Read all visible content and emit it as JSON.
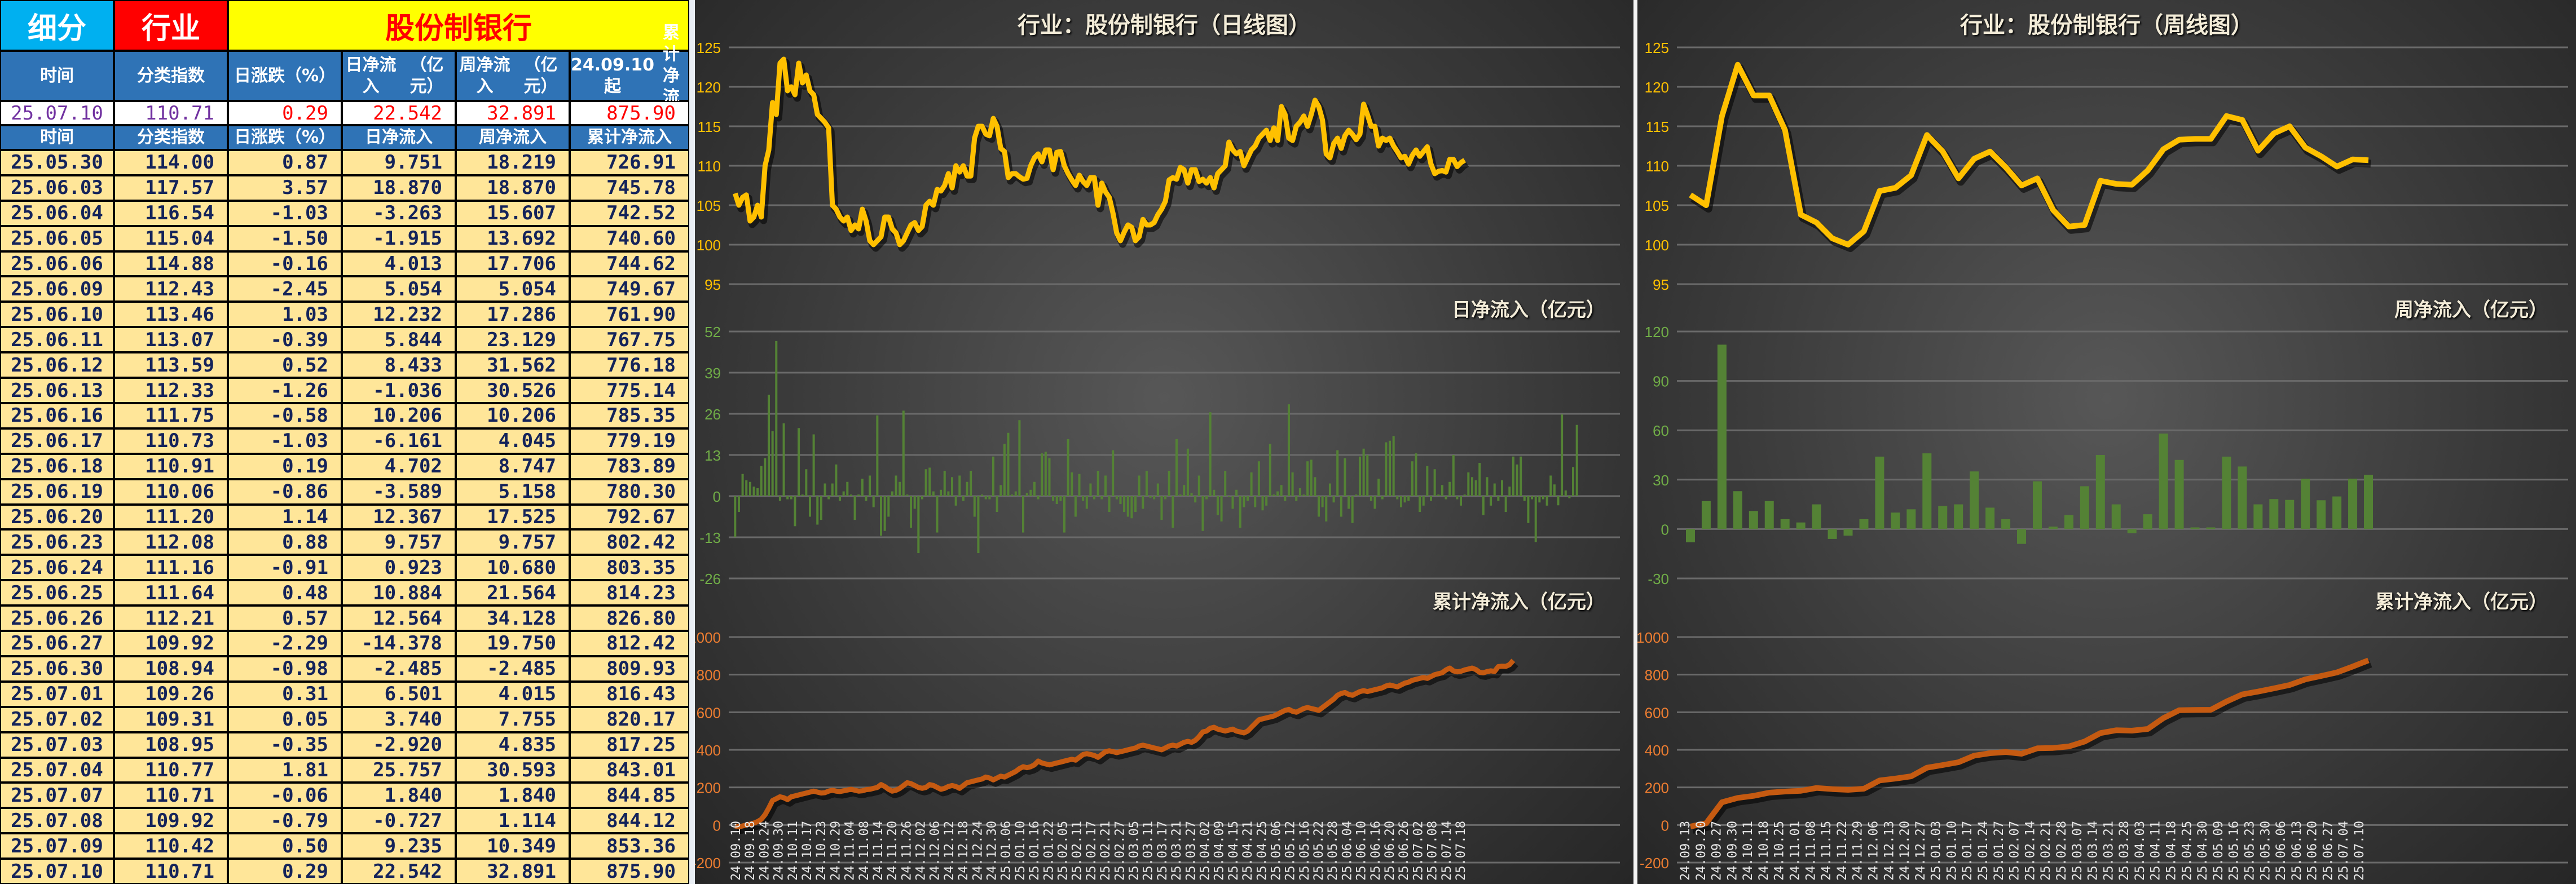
{
  "table": {
    "banner": {
      "category_label": "细分",
      "type_label": "行业",
      "name": "股份制银行"
    },
    "header": [
      "时间",
      "分类指数",
      "日涨跌（%）",
      "日净流入\n（亿元）",
      "周净流入\n（亿元）",
      "24.09.10起\n累计净流入"
    ],
    "summary": [
      "25.07.10",
      "110.71",
      "0.29",
      "22.542",
      "32.891",
      "875.90"
    ],
    "subheader": [
      "时间",
      "分类指数",
      "日涨跌（%）",
      "日净流入",
      "周净流入",
      "累计净流入"
    ],
    "rows": [
      [
        "25.05.30",
        "114.00",
        "0.87",
        "9.751",
        "18.219",
        "726.91"
      ],
      [
        "25.06.03",
        "117.57",
        "3.57",
        "18.870",
        "18.870",
        "745.78"
      ],
      [
        "25.06.04",
        "116.54",
        "-1.03",
        "-3.263",
        "15.607",
        "742.52"
      ],
      [
        "25.06.05",
        "115.04",
        "-1.50",
        "-1.915",
        "13.692",
        "740.60"
      ],
      [
        "25.06.06",
        "114.88",
        "-0.16",
        "4.013",
        "17.706",
        "744.62"
      ],
      [
        "25.06.09",
        "112.43",
        "-2.45",
        "5.054",
        "5.054",
        "749.67"
      ],
      [
        "25.06.10",
        "113.46",
        "1.03",
        "12.232",
        "17.286",
        "761.90"
      ],
      [
        "25.06.11",
        "113.07",
        "-0.39",
        "5.844",
        "23.129",
        "767.75"
      ],
      [
        "25.06.12",
        "113.59",
        "0.52",
        "8.433",
        "31.562",
        "776.18"
      ],
      [
        "25.06.13",
        "112.33",
        "-1.26",
        "-1.036",
        "30.526",
        "775.14"
      ],
      [
        "25.06.16",
        "111.75",
        "-0.58",
        "10.206",
        "10.206",
        "785.35"
      ],
      [
        "25.06.17",
        "110.73",
        "-1.03",
        "-6.161",
        "4.045",
        "779.19"
      ],
      [
        "25.06.18",
        "110.91",
        "0.19",
        "4.702",
        "8.747",
        "783.89"
      ],
      [
        "25.06.19",
        "110.06",
        "-0.86",
        "-3.589",
        "5.158",
        "780.30"
      ],
      [
        "25.06.20",
        "111.20",
        "1.14",
        "12.367",
        "17.525",
        "792.67"
      ],
      [
        "25.06.23",
        "112.08",
        "0.88",
        "9.757",
        "9.757",
        "802.42"
      ],
      [
        "25.06.24",
        "111.16",
        "-0.91",
        "0.923",
        "10.680",
        "803.35"
      ],
      [
        "25.06.25",
        "111.64",
        "0.48",
        "10.884",
        "21.564",
        "814.23"
      ],
      [
        "25.06.26",
        "112.21",
        "0.57",
        "12.564",
        "34.128",
        "826.80"
      ],
      [
        "25.06.27",
        "109.92",
        "-2.29",
        "-14.378",
        "19.750",
        "812.42"
      ],
      [
        "25.06.30",
        "108.94",
        "-0.98",
        "-2.485",
        "-2.485",
        "809.93"
      ],
      [
        "25.07.01",
        "109.26",
        "0.31",
        "6.501",
        "4.015",
        "816.43"
      ],
      [
        "25.07.02",
        "109.31",
        "0.05",
        "3.740",
        "7.755",
        "820.17"
      ],
      [
        "25.07.03",
        "108.95",
        "-0.35",
        "-2.920",
        "4.835",
        "817.25"
      ],
      [
        "25.07.04",
        "110.77",
        "1.81",
        "25.757",
        "30.593",
        "843.01"
      ],
      [
        "25.07.07",
        "110.71",
        "-0.06",
        "1.840",
        "1.840",
        "844.85"
      ],
      [
        "25.07.08",
        "109.92",
        "-0.79",
        "-0.727",
        "1.114",
        "844.12"
      ],
      [
        "25.07.09",
        "110.42",
        "0.50",
        "9.235",
        "10.349",
        "853.36"
      ],
      [
        "25.07.10",
        "110.71",
        "0.29",
        "22.542",
        "32.891",
        "875.90"
      ]
    ]
  },
  "colors": {
    "banner_category_bg": "#00b0f0",
    "banner_type_bg": "#ff0000",
    "banner_name_bg": "#ffff00",
    "banner_name_text": "#ff0000",
    "header_bg": "#2f73b6",
    "row_bg": "#ffe699",
    "row_text": "#14235a",
    "summary_date_text": "#7030a0",
    "summary_value_text": "#ff0000",
    "price_line": "#ffc000",
    "flow_bar": "#548235",
    "cum_line": "#c55a11",
    "price_axis": "#ffc000",
    "flow_axis": "#70ad47",
    "cum_axis": "#ed7d31"
  },
  "chart_data": [
    {
      "id": "daily",
      "type": "line+bar+line",
      "title": "行业：股份制银行（日线图）",
      "panels": [
        {
          "name": "price",
          "type": "line",
          "label": "",
          "ylim": [
            95,
            125
          ],
          "yticks": [
            95,
            100,
            105,
            110,
            115,
            120,
            125
          ]
        },
        {
          "name": "flow",
          "type": "bar",
          "label": "日净流入（亿元）",
          "ylim": [
            -26,
            52
          ],
          "yticks": [
            -26,
            -13,
            0,
            13,
            26,
            39,
            52
          ]
        },
        {
          "name": "cum",
          "type": "line",
          "label": "累计净流入（亿元）",
          "ylim": [
            -200,
            1000
          ],
          "yticks": [
            -200,
            0,
            200,
            400,
            600,
            800,
            1000
          ]
        }
      ],
      "x_tick_labels": [
        "24.09.10",
        "24.09.18",
        "24.09.24",
        "24.09.30",
        "24.10.11",
        "24.10.17",
        "24.10.23",
        "24.10.29",
        "24.11.04",
        "24.11.08",
        "24.11.14",
        "24.11.20",
        "24.11.26",
        "24.12.02",
        "24.12.06",
        "24.12.12",
        "24.12.18",
        "24.12.24",
        "24.12.30",
        "25.01.06",
        "25.01.10",
        "25.01.16",
        "25.01.22",
        "25.02.05",
        "25.02.11",
        "25.02.17",
        "25.02.21",
        "25.02.27",
        "25.03.05",
        "25.03.11",
        "25.03.17",
        "25.03.21",
        "25.03.27",
        "25.04.02",
        "25.04.09",
        "25.04.15",
        "25.04.21",
        "25.04.25",
        "25.05.06",
        "25.05.12",
        "25.05.16",
        "25.05.22",
        "25.05.28",
        "25.06.04",
        "25.06.10",
        "25.06.16",
        "25.06.20",
        "25.06.26",
        "25.07.02",
        "25.07.08",
        "25.07.14",
        "25.07.18"
      ],
      "price": [
        106.5,
        105,
        106,
        106.3,
        103,
        103.5,
        105,
        103.5,
        110,
        112,
        118,
        116.5,
        123,
        123.5,
        119.5,
        120,
        119,
        123,
        120.5,
        121.5,
        119.5,
        119,
        116.5,
        116,
        115.5,
        114.8,
        105,
        104.5,
        103.5,
        103,
        103.5,
        101.8,
        102.5,
        102,
        104.5,
        103,
        100.5,
        100,
        100.5,
        101,
        103.5,
        103.5,
        102,
        101.5,
        100,
        100.5,
        101.5,
        102.5,
        102.8,
        101.8,
        102.3,
        105,
        105.5,
        105,
        107,
        106.8,
        107.5,
        109,
        107.2,
        110,
        109.2,
        110,
        108.7,
        108.7,
        113.5,
        115,
        115,
        114,
        113.8,
        116,
        115,
        112.2,
        111.8,
        108.5,
        109,
        109,
        108.6,
        108.3,
        108.4,
        110,
        111,
        111.5,
        110.5,
        112,
        112,
        109.5,
        111.7,
        111.8,
        110,
        109,
        108.2,
        107.5,
        108.8,
        108,
        107.5,
        108.5,
        108.5,
        105,
        107.8,
        106.7,
        106,
        104,
        101.5,
        100.5,
        101.6,
        102.5,
        102.2,
        100.5,
        101,
        103.2,
        102.5,
        102.5,
        102.8,
        103.8,
        104.5,
        105.5,
        108.2,
        108.5,
        108.3,
        109.8,
        109.5,
        107.8,
        109.5,
        109.5,
        108,
        108.3,
        107.8,
        108.5,
        107.2,
        109,
        109.5,
        110,
        113,
        112,
        111.5,
        111.8,
        110,
        111,
        112,
        112.5,
        113.5,
        114,
        114.5,
        113.2,
        114.8,
        113.2,
        117.5,
        116.5,
        113.5,
        113.2,
        115,
        115.5,
        116.3,
        115,
        116.5,
        118.3,
        117.5,
        115.8,
        111.5,
        111,
        112.8,
        113.5,
        112.2,
        113.8,
        114.5,
        114,
        113.3,
        114,
        117.8,
        116.5,
        115,
        115,
        112.5,
        113.5,
        113.2,
        113.5,
        112.5,
        111.8,
        111,
        111.2,
        110.2,
        111.3,
        112,
        111.2,
        111.8,
        112.4,
        110.2,
        109,
        109.3,
        109.4,
        109.2,
        110.8,
        110.8,
        109.9,
        110.4,
        110.7
      ],
      "flow": [
        -13,
        -5,
        7,
        5,
        4.5,
        3,
        2.5,
        9.5,
        12,
        32,
        20.5,
        49,
        -1.5,
        23,
        -1,
        -1,
        -9.5,
        21.5,
        0.5,
        8.5,
        -6.5,
        19.5,
        -9,
        -7.5,
        4,
        -1,
        4,
        10,
        -1.5,
        1.5,
        4.5,
        0.5,
        -7.5,
        0.5,
        5.5,
        -1.5,
        6.5,
        -3.5,
        25.5,
        -12.5,
        -11,
        -6.5,
        1.5,
        6.5,
        4.5,
        27,
        0.5,
        -10,
        -4,
        -18,
        -1,
        8.5,
        9,
        1.5,
        -11.5,
        2,
        8,
        1.5,
        6,
        -3,
        6.5,
        -1.5,
        4.5,
        8,
        -6.5,
        -18,
        0.5,
        -1,
        -1,
        12.5,
        -5,
        3.5,
        16.5,
        20,
        0.5,
        1.5,
        24,
        -11.5,
        1,
        2,
        4.5,
        -1,
        13.5,
        14,
        12,
        -1.5,
        -2.5,
        -1.5,
        -11.5,
        18,
        7.5,
        -6.5,
        7,
        -1.5,
        -4,
        4,
        -1,
        8,
        -1,
        6.5,
        -5,
        14.5,
        -1,
        -2.5,
        -5,
        -6.5,
        -7,
        -5,
        6.5,
        -4,
        8,
        -0.5,
        -1,
        4,
        -7.5,
        -1,
        8,
        -10,
        18,
        0.5,
        3.5,
        15,
        1,
        -2,
        6.5,
        -11,
        -1,
        26.5,
        2,
        -6,
        -8,
        8,
        0,
        -4,
        2,
        -10,
        -3.5,
        -1.5,
        7.5,
        -3.5,
        11,
        -4.5,
        -3,
        16.5,
        0.5,
        1.5,
        3.5,
        -1.5,
        29,
        7.5,
        -1.5,
        2.5,
        0.5,
        11,
        11.5,
        6,
        -6.5,
        -3.5,
        -8,
        4,
        -2,
        14.5,
        -6.5,
        12,
        -4,
        -8.5,
        0.5,
        12.5,
        15,
        13,
        -1.5,
        -4,
        5.5,
        -1,
        17,
        17.5,
        19,
        -1,
        -3.5,
        -2,
        -1.5,
        11,
        13.5,
        -5,
        -3,
        9.5,
        -1.5,
        8.5,
        0.5,
        3.5,
        -1,
        4.5,
        13,
        -1,
        -3,
        0.5,
        7.5,
        6,
        5,
        10.5,
        -6,
        6,
        -3,
        4,
        -1.5,
        5,
        -5,
        3,
        12.5,
        10,
        12.5,
        -1.5,
        -8.5,
        -1,
        -14.5,
        -2,
        -1,
        -3,
        6.5,
        3.7,
        -2.9,
        25.8,
        1.8,
        -0.7,
        9.2,
        22.5
      ],
      "cum": [
        -5,
        -10,
        -5,
        0,
        5,
        10,
        18,
        30,
        55,
        90,
        130,
        140,
        150,
        145,
        135,
        150,
        155,
        160,
        165,
        170,
        175,
        180,
        175,
        170,
        172,
        180,
        185,
        180,
        178,
        182,
        186,
        190,
        185,
        180,
        182,
        188,
        190,
        195,
        200,
        215,
        205,
        190,
        180,
        185,
        195,
        210,
        225,
        220,
        210,
        200,
        195,
        200,
        215,
        210,
        200,
        190,
        195,
        205,
        210,
        205,
        195,
        210,
        225,
        230,
        235,
        240,
        245,
        255,
        250,
        240,
        250,
        260,
        255,
        265,
        275,
        285,
        300,
        310,
        305,
        310,
        320,
        340,
        330,
        325,
        320,
        325,
        330,
        335,
        340,
        345,
        350,
        345,
        360,
        375,
        380,
        375,
        370,
        360,
        375,
        390,
        395,
        390,
        385,
        390,
        395,
        400,
        405,
        410,
        420,
        425,
        420,
        415,
        410,
        405,
        400,
        410,
        420,
        425,
        420,
        430,
        440,
        445,
        440,
        450,
        470,
        495,
        500,
        515,
        520,
        510,
        505,
        500,
        505,
        510,
        500,
        495,
        490,
        500,
        520,
        540,
        560,
        565,
        570,
        575,
        580,
        590,
        600,
        610,
        615,
        605,
        600,
        610,
        620,
        625,
        620,
        615,
        610,
        625,
        640,
        655,
        670,
        690,
        700,
        705,
        695,
        690,
        700,
        710,
        715,
        710,
        715,
        720,
        725,
        730,
        740,
        745,
        740,
        735,
        745,
        755,
        760,
        770,
        775,
        780,
        785,
        780,
        790,
        800,
        805,
        810,
        825,
        835,
        820,
        815,
        818,
        825,
        830,
        835,
        826.8,
        812.4,
        809.9,
        816.4,
        820.2,
        817.3,
        843.0,
        844.9,
        844.1,
        853.4,
        875.9
      ]
    },
    {
      "id": "weekly",
      "type": "line+bar+line",
      "title": "行业：股份制银行（周线图）",
      "panels": [
        {
          "name": "price",
          "type": "line",
          "label": "",
          "ylim": [
            95,
            125
          ],
          "yticks": [
            95,
            100,
            105,
            110,
            115,
            120,
            125
          ]
        },
        {
          "name": "flow",
          "type": "bar",
          "label": "周净流入（亿元）",
          "ylim": [
            -30,
            120
          ],
          "yticks": [
            -30,
            0,
            30,
            60,
            90,
            120
          ]
        },
        {
          "name": "cum",
          "type": "line",
          "label": "累计净流入（亿元）",
          "ylim": [
            -200,
            1000
          ],
          "yticks": [
            -200,
            0,
            200,
            400,
            600,
            800,
            1000
          ]
        }
      ],
      "x_tick_labels": [
        "24.09.13",
        "24.09.20",
        "24.09.27",
        "24.09.30",
        "24.10.11",
        "24.10.18",
        "24.10.25",
        "24.11.01",
        "24.11.08",
        "24.11.15",
        "24.11.22",
        "24.11.29",
        "24.12.06",
        "24.12.13",
        "24.12.20",
        "24.12.27",
        "25.01.03",
        "25.01.10",
        "25.01.17",
        "25.01.24",
        "25.01.27",
        "25.02.07",
        "25.02.14",
        "25.02.21",
        "25.02.28",
        "25.03.07",
        "25.03.14",
        "25.03.21",
        "25.03.28",
        "25.04.03",
        "25.04.11",
        "25.04.18",
        "25.04.25",
        "25.04.30",
        "25.05.09",
        "25.05.16",
        "25.05.23",
        "25.05.30",
        "25.06.06",
        "25.06.13",
        "25.06.20",
        "25.06.27",
        "25.07.04",
        "25.07.10"
      ],
      "price": [
        106.3,
        105,
        116.3,
        122.8,
        118.9,
        118.9,
        114.5,
        103.8,
        102.8,
        100.8,
        100,
        101.7,
        106.8,
        107.2,
        108.8,
        113.9,
        111.8,
        108.4,
        110.9,
        111.8,
        109.8,
        107.5,
        108.4,
        104.4,
        102.3,
        102.5,
        108.1,
        107.7,
        107.6,
        109.4,
        112.1,
        113.3,
        113.4,
        113.4,
        116.3,
        115.8,
        111.9,
        114.1,
        115,
        112.3,
        111.2,
        109.9,
        110.8,
        110.7
      ],
      "flow": [
        -8,
        17,
        112,
        23,
        11,
        17,
        6,
        4,
        15,
        -6,
        -4,
        6,
        44,
        10,
        12,
        46,
        14,
        15,
        35,
        13,
        6,
        -9,
        29,
        1.5,
        8.5,
        26,
        45,
        15,
        -2.5,
        9,
        58,
        42,
        1,
        1,
        44,
        38,
        15,
        18.2,
        17.7,
        30.5,
        17.5,
        19.8,
        30.6,
        32.9
      ],
      "cum": [
        -8,
        9,
        121,
        144,
        155,
        172,
        178,
        182,
        197,
        191,
        187,
        193,
        237,
        247,
        259,
        305,
        319,
        334,
        369,
        382,
        388,
        379,
        408,
        410,
        418,
        444,
        489,
        504,
        502,
        511,
        569,
        611,
        612,
        613,
        657,
        695,
        710,
        727,
        745,
        775,
        793,
        812,
        843,
        876
      ]
    }
  ]
}
